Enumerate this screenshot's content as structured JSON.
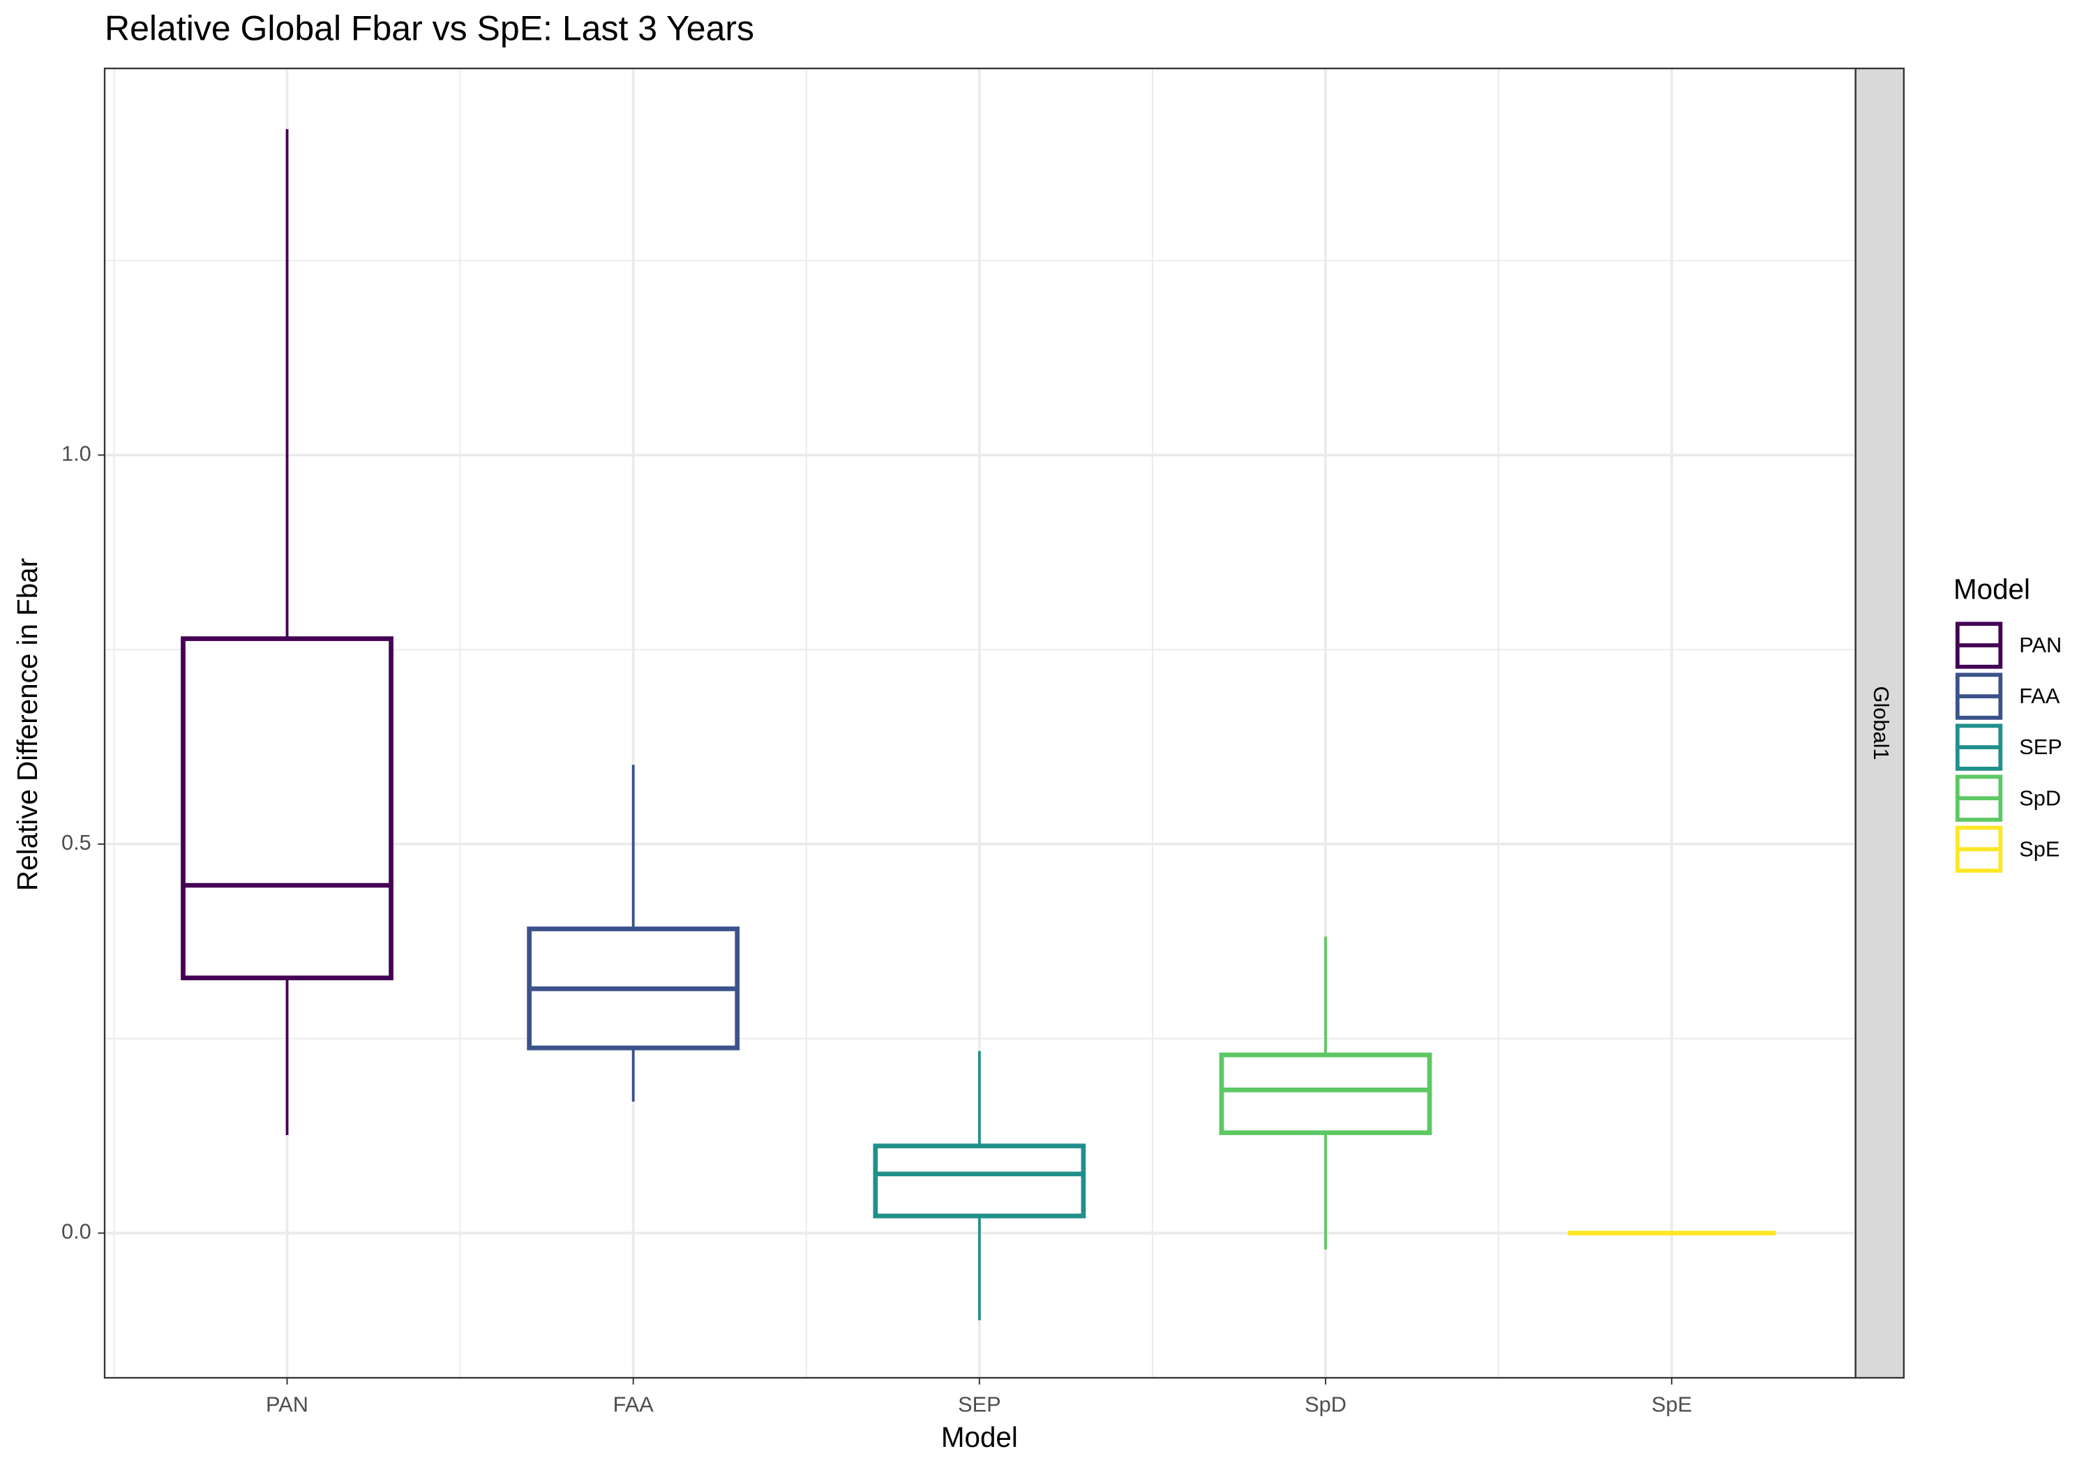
{
  "chart_data": {
    "type": "boxplot",
    "title": "Relative Global Fbar vs SpE: Last 3 Years",
    "x_label": "Model",
    "y_label": "Relative Difference in Fbar",
    "facet_label": "Global1",
    "legend_title": "Model",
    "categories": [
      "PAN",
      "FAA",
      "SEP",
      "SpD",
      "SpE"
    ],
    "series": [
      {
        "name": "PAN",
        "color": "#440154",
        "whisker_low": 0.126,
        "q1": 0.328,
        "median": 0.447,
        "q3": 0.764,
        "whisker_high": 1.419
      },
      {
        "name": "FAA",
        "color": "#3b528b",
        "whisker_low": 0.169,
        "q1": 0.238,
        "median": 0.314,
        "q3": 0.391,
        "whisker_high": 0.602
      },
      {
        "name": "SEP",
        "color": "#21908c",
        "whisker_low": -0.112,
        "q1": 0.022,
        "median": 0.076,
        "q3": 0.112,
        "whisker_high": 0.234
      },
      {
        "name": "SpD",
        "color": "#5dc863",
        "whisker_low": -0.021,
        "q1": 0.129,
        "median": 0.184,
        "q3": 0.229,
        "whisker_high": 0.381
      },
      {
        "name": "SpE",
        "color": "#fde725",
        "whisker_low": 0,
        "q1": 0,
        "median": 0,
        "q3": 0,
        "whisker_high": 0
      }
    ],
    "ylim": [
      -0.186,
      1.497
    ],
    "yticks": [
      {
        "value": 0,
        "label": "0.0"
      },
      {
        "value": 0.5,
        "label": "0.5"
      },
      {
        "value": 1,
        "label": "1.0"
      }
    ],
    "y_minor_ticks": [
      0.25,
      0.75,
      1.25
    ],
    "grid": true,
    "legend_position": "right"
  }
}
